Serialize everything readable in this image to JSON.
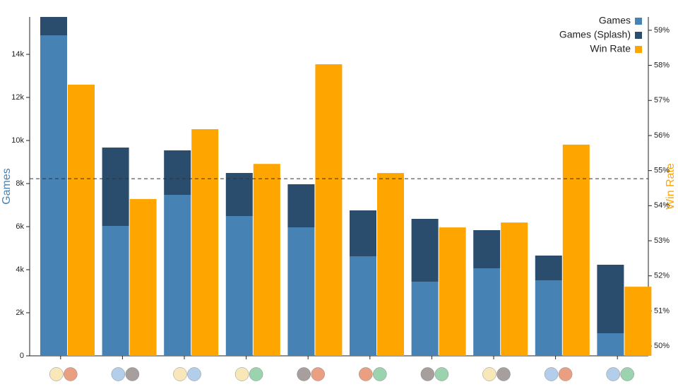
{
  "chart_data": {
    "type": "bar",
    "categories": [
      null,
      null,
      null,
      null,
      null,
      null,
      null,
      null,
      null,
      null
    ],
    "y_label": "Games",
    "y2_label": "Win Rate",
    "series": [
      {
        "name": "Games",
        "color": "#4682b4",
        "values": [
          14885,
          6033,
          7475,
          6492,
          5967,
          4623,
          3443,
          4066,
          3508,
          1049
        ]
      },
      {
        "name": "Games (Splash)",
        "color": "#2a4d6e",
        "values": [
          853,
          3639,
          2066,
          2000,
          2000,
          2131,
          2918,
          1770,
          1148,
          3181
        ]
      },
      {
        "name": "Win Rate",
        "color": "#ffa500",
        "axis": "y2",
        "values": [
          57.45,
          54.19,
          56.18,
          55.19,
          58.03,
          54.93,
          53.38,
          53.52,
          55.74,
          51.69
        ]
      }
    ],
    "reference_line": 54.77,
    "ylim": [
      0,
      15738
    ],
    "yticks": [
      0,
      {
        "value": 2000,
        "label": "2k"
      },
      {
        "value": 4000,
        "label": "4k"
      },
      {
        "value": 6000,
        "label": "6k"
      },
      {
        "value": 8000,
        "label": "8k"
      },
      {
        "value": 10000,
        "label": "10k"
      },
      {
        "value": 12000,
        "label": "12k"
      },
      {
        "value": 14000,
        "label": "14k"
      }
    ],
    "y2lim": [
      49.72,
      59.38
    ],
    "y2ticks": [
      {
        "value": 50,
        "label": "50%"
      },
      {
        "value": 51,
        "label": "51%"
      },
      {
        "value": 52,
        "label": "52%"
      },
      {
        "value": 53,
        "label": "53%"
      },
      {
        "value": 54,
        "label": "54%"
      },
      {
        "value": 55,
        "label": "55%"
      },
      {
        "value": 56,
        "label": "56%"
      },
      {
        "value": 57,
        "label": "57%"
      },
      {
        "value": 58,
        "label": "58%"
      },
      {
        "value": 59,
        "label": "59%"
      }
    ],
    "legend": "top-right"
  }
}
